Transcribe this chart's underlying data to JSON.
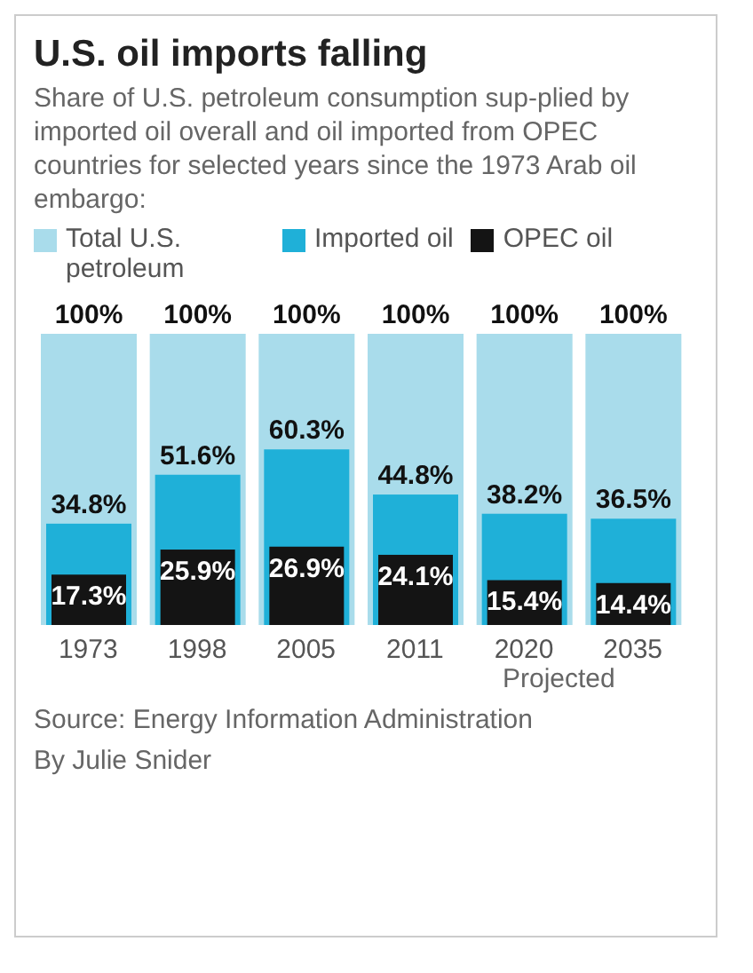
{
  "chart_data": {
    "type": "bar",
    "title": "U.S. oil imports falling",
    "subtitle": "Share of U.S. petroleum consumption sup-plied by imported oil overall and oil imported from OPEC countries for selected years since the 1973 Arab oil embargo:",
    "categories": [
      "1973",
      "1998",
      "2005",
      "2011",
      "2020",
      "2035"
    ],
    "series": [
      {
        "name": "Total U.S. petroleum",
        "color": "#a9dceb",
        "values": [
          100,
          100,
          100,
          100,
          100,
          100
        ],
        "value_labels": [
          "100%",
          "100%",
          "100%",
          "100%",
          "100%",
          "100%"
        ]
      },
      {
        "name": "Imported oil",
        "color": "#1fb0d8",
        "values": [
          34.8,
          51.6,
          60.3,
          44.8,
          38.2,
          36.5
        ],
        "value_labels": [
          "34.8%",
          "51.6%",
          "60.3%",
          "44.8%",
          "38.2%",
          "36.5%"
        ]
      },
      {
        "name": "OPEC oil",
        "color": "#141414",
        "values": [
          17.3,
          25.9,
          26.9,
          24.1,
          15.4,
          14.4
        ],
        "value_labels": [
          "17.3%",
          "25.9%",
          "26.9%",
          "24.1%",
          "15.4%",
          "14.4%"
        ]
      }
    ],
    "legend": "top",
    "grid": false,
    "tick_labels": "x",
    "annotations": [
      "Projected",
      "Source: Energy Information Administration",
      "By Julie Snider"
    ]
  }
}
